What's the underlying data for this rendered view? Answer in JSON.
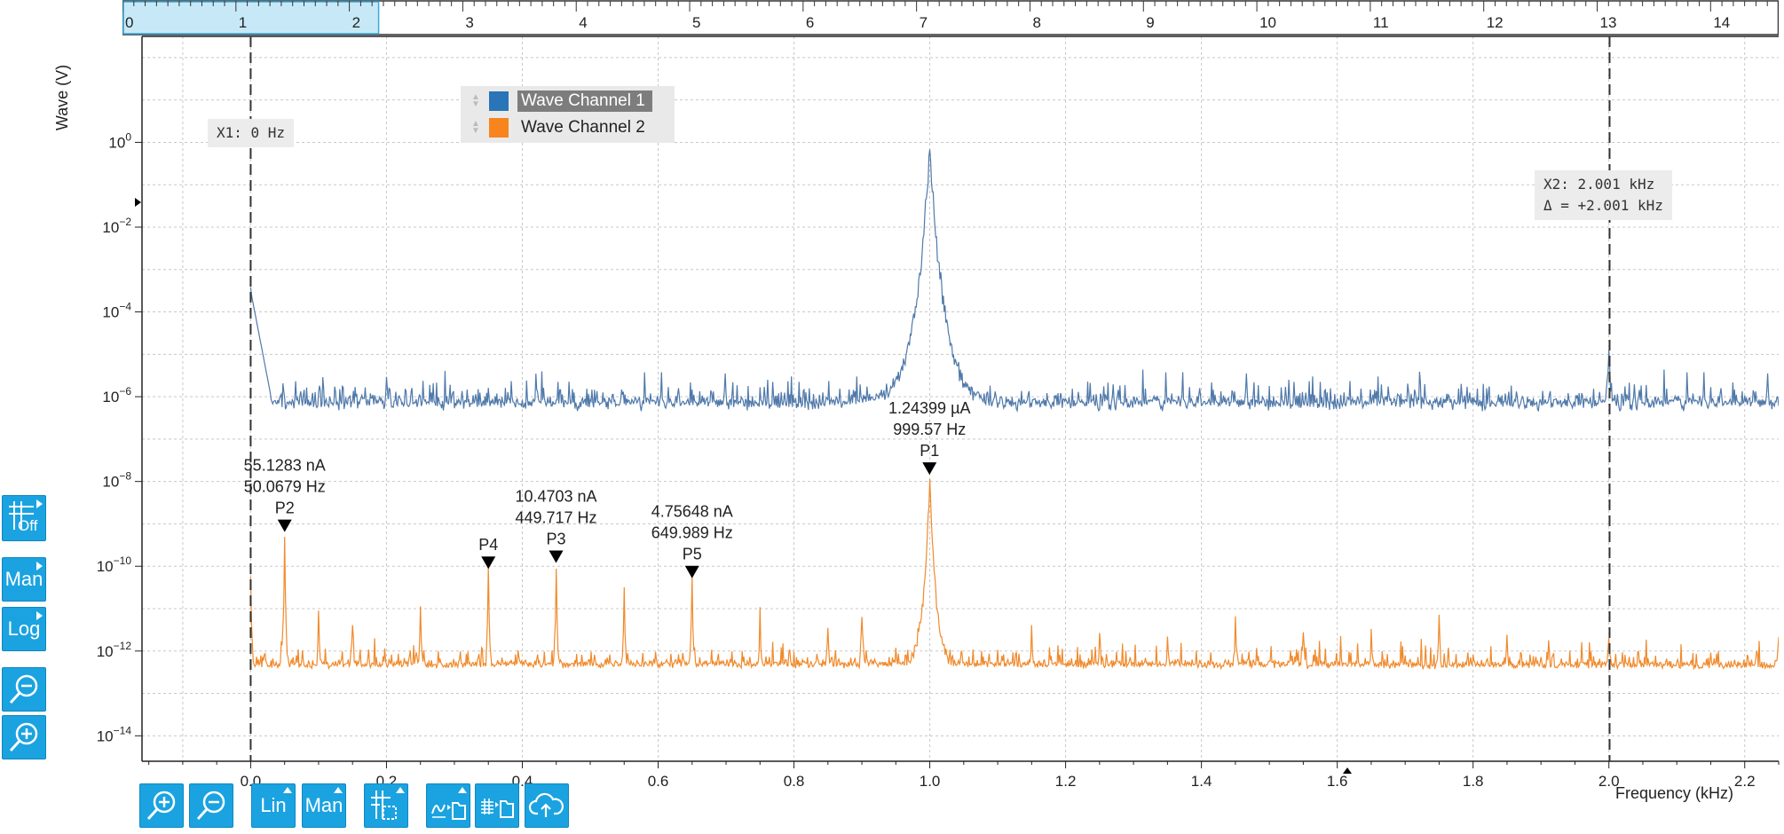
{
  "chart_data": {
    "type": "line",
    "xlabel": "Frequency (kHz)",
    "ylabel": "Wave (V)",
    "xlim": [
      -0.16,
      2.25
    ],
    "ylim_log10": [
      -14.6,
      2.5
    ],
    "y_scale": "log",
    "grid": true,
    "x_ticks": [
      "0.0",
      "0.2",
      "0.4",
      "0.6",
      "0.8",
      "1.0",
      "1.2",
      "1.4",
      "1.6",
      "1.8",
      "2.0",
      "2.2"
    ],
    "y_tick_exponents": [
      "0",
      "-2",
      "-4",
      "-6",
      "-8",
      "-10",
      "-12",
      "-14"
    ],
    "legend_placement": "top-center",
    "series": [
      {
        "name": "Wave Channel 1",
        "color": "#4f79aa",
        "noise_floor_log10": -6.25,
        "peaks": [
          {
            "x": 0.0,
            "log10": -3.5
          },
          {
            "x": 1.0,
            "log10": -0.1
          },
          {
            "x": 2.0,
            "log10": -5.0
          }
        ]
      },
      {
        "name": "Wave Channel 2",
        "color": "#f08a2c",
        "noise_floor_log10": -12.5,
        "peaks": [
          {
            "x": 0.0,
            "log10": -10.3
          },
          {
            "x": 0.05,
            "log10": -9.26
          },
          {
            "x": 0.1,
            "log10": -11.1
          },
          {
            "x": 0.15,
            "log10": -11.2
          },
          {
            "x": 0.25,
            "log10": -10.9
          },
          {
            "x": 0.35,
            "log10": -10.1
          },
          {
            "x": 0.45,
            "log10": -9.98
          },
          {
            "x": 0.55,
            "log10": -10.6
          },
          {
            "x": 0.65,
            "log10": -10.32
          },
          {
            "x": 0.75,
            "log10": -11.2
          },
          {
            "x": 0.85,
            "log10": -11.4
          },
          {
            "x": 0.9,
            "log10": -11.1
          },
          {
            "x": 1.0,
            "log10": -7.9
          },
          {
            "x": 1.15,
            "log10": -11.4
          },
          {
            "x": 1.25,
            "log10": -11.5
          },
          {
            "x": 1.35,
            "log10": -11.6
          },
          {
            "x": 1.45,
            "log10": -11.2
          },
          {
            "x": 1.55,
            "log10": -11.6
          },
          {
            "x": 1.65,
            "log10": -11.5
          },
          {
            "x": 1.75,
            "log10": -11.2
          },
          {
            "x": 1.85,
            "log10": -11.6
          },
          {
            "x": 2.0,
            "log10": -11.6
          },
          {
            "x": 2.25,
            "log10": -11.6
          }
        ]
      }
    ],
    "markers": [
      {
        "label": "P1",
        "x": 0.99957,
        "log10": -7.78,
        "value": "1.24399 µA",
        "freq": "999.57 Hz"
      },
      {
        "label": "P2",
        "x": 0.0500679,
        "log10": -9.13,
        "value": "55.1283 nA",
        "freq": "50.0679 Hz"
      },
      {
        "label": "P3",
        "x": 0.449717,
        "log10": -9.86,
        "value": "10.4703 nA",
        "freq": "449.717 Hz"
      },
      {
        "label": "P4",
        "x": 0.35,
        "log10": -10.0,
        "value": "",
        "freq": ""
      },
      {
        "label": "P5",
        "x": 0.649989,
        "log10": -10.22,
        "value": "4.75648 nA",
        "freq": "649.989 Hz"
      }
    ],
    "cursors": [
      {
        "id": "X1",
        "x": 0.0,
        "lines": [
          "X1: 0 Hz"
        ]
      },
      {
        "id": "X2",
        "x": 2.001,
        "lines": [
          "X2: 2.001 kHz",
          "Δ = +2.001 kHz"
        ]
      }
    ]
  },
  "overview": {
    "ticks": [
      "0",
      "1",
      "2",
      "3",
      "4",
      "5",
      "6",
      "7",
      "8",
      "9",
      "10",
      "11",
      "12",
      "13",
      "14"
    ],
    "range": [
      0,
      14.6
    ],
    "selection": [
      0,
      2.25
    ]
  },
  "toolbar_bottom": {
    "zoom_in": "zoom-in-icon",
    "zoom_out": "zoom-out-icon",
    "x_scale_label": "Lin",
    "x_range_label": "Man",
    "cursor_toggle": "cursor-icon",
    "export_plot": "export-plot-icon",
    "export_data": "export-data-icon",
    "upload": "cloud-upload-icon"
  },
  "toolbar_left": {
    "grid_label": "Off",
    "y_range_label": "Man",
    "y_scale_label": "Log",
    "zoom_out": "zoom-out-icon",
    "zoom_in": "zoom-in-icon"
  },
  "colors": {
    "accent": "#1aa3e0",
    "ch1": "#4f79aa",
    "ch2": "#f08a2c"
  }
}
